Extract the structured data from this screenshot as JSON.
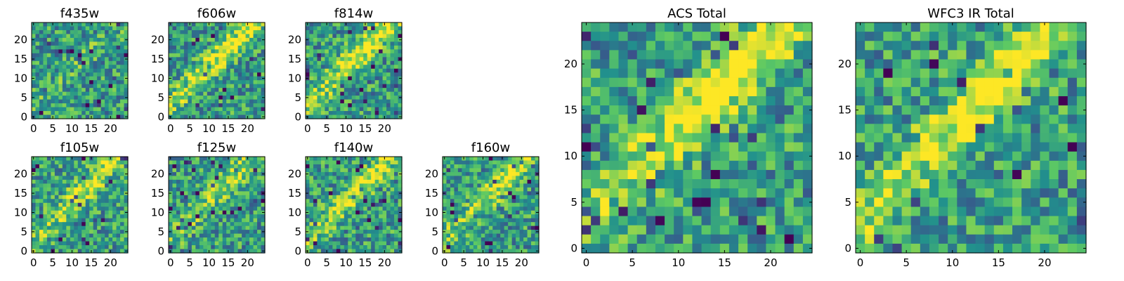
{
  "chart_data": [
    {
      "type": "heatmap",
      "title": "f435w",
      "grid_size": 25,
      "xticks": [
        "0",
        "5",
        "10",
        "15",
        "20"
      ],
      "yticks": [
        "0",
        "5",
        "10",
        "15",
        "20"
      ],
      "colormap": "viridis",
      "feature_strength": 0.25,
      "seed": 11
    },
    {
      "type": "heatmap",
      "title": "f606w",
      "grid_size": 25,
      "xticks": [
        "0",
        "5",
        "10",
        "15",
        "20"
      ],
      "yticks": [
        "0",
        "5",
        "10",
        "15",
        "20"
      ],
      "colormap": "viridis",
      "feature_strength": 0.9,
      "seed": 23
    },
    {
      "type": "heatmap",
      "title": "f814w",
      "grid_size": 25,
      "xticks": [
        "0",
        "5",
        "10",
        "15",
        "20"
      ],
      "yticks": [
        "0",
        "5",
        "10",
        "15",
        "20"
      ],
      "colormap": "viridis",
      "feature_strength": 0.9,
      "seed": 37
    },
    {
      "type": "heatmap",
      "title": "f105w",
      "grid_size": 25,
      "xticks": [
        "0",
        "5",
        "10",
        "15",
        "20"
      ],
      "yticks": [
        "0",
        "5",
        "10",
        "15",
        "20"
      ],
      "colormap": "viridis",
      "feature_strength": 0.7,
      "seed": 41
    },
    {
      "type": "heatmap",
      "title": "f125w",
      "grid_size": 25,
      "xticks": [
        "0",
        "5",
        "10",
        "15",
        "20"
      ],
      "yticks": [
        "0",
        "5",
        "10",
        "15",
        "20"
      ],
      "colormap": "viridis",
      "feature_strength": 0.55,
      "seed": 53
    },
    {
      "type": "heatmap",
      "title": "f140w",
      "grid_size": 25,
      "xticks": [
        "0",
        "5",
        "10",
        "15",
        "20"
      ],
      "yticks": [
        "0",
        "5",
        "10",
        "15",
        "20"
      ],
      "colormap": "viridis",
      "feature_strength": 0.75,
      "seed": 67
    },
    {
      "type": "heatmap",
      "title": "f160w",
      "grid_size": 25,
      "xticks": [
        "0",
        "5",
        "10",
        "15",
        "20"
      ],
      "yticks": [
        "0",
        "5",
        "10",
        "15",
        "20"
      ],
      "colormap": "viridis",
      "feature_strength": 0.8,
      "seed": 71
    },
    {
      "type": "heatmap",
      "title": "ACS Total",
      "grid_size": 25,
      "xticks": [
        "0",
        "5",
        "10",
        "15",
        "20"
      ],
      "yticks": [
        "0",
        "5",
        "10",
        "15",
        "20"
      ],
      "colormap": "viridis",
      "feature_strength": 1.0,
      "seed": 83
    },
    {
      "type": "heatmap",
      "title": "WFC3 IR Total",
      "grid_size": 25,
      "xticks": [
        "0",
        "5",
        "10",
        "15",
        "20"
      ],
      "yticks": [
        "0",
        "5",
        "10",
        "15",
        "20"
      ],
      "colormap": "viridis",
      "feature_strength": 1.0,
      "seed": 97
    }
  ],
  "colors": {
    "viridis": [
      "#440154",
      "#3b528b",
      "#21908d",
      "#5dc963",
      "#fde725"
    ]
  }
}
